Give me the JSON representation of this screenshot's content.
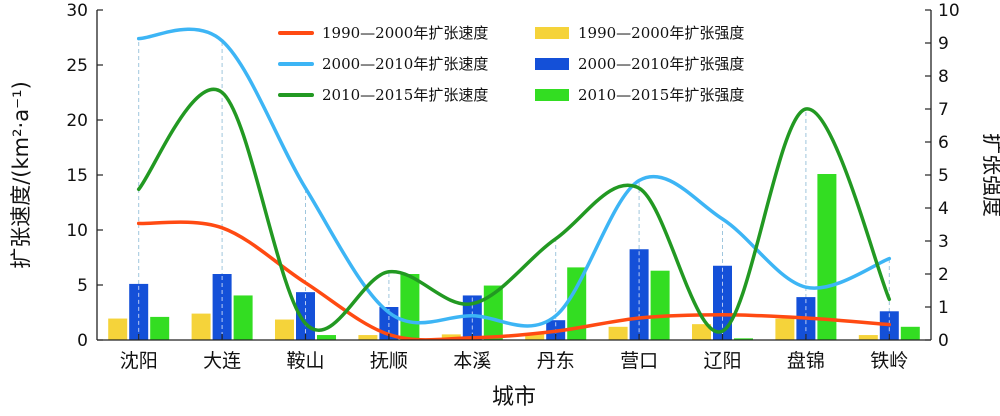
{
  "chart_data": {
    "type": "bar+line",
    "categories": [
      "沈阳",
      "大连",
      "鞍山",
      "抚顺",
      "本溪",
      "丹东",
      "营口",
      "辽阳",
      "盘锦",
      "铁岭"
    ],
    "xlabel": "城市",
    "ylabel_left": "扩张速度/(km²·a⁻¹)",
    "ylabel_right": "扩张强度",
    "ylim_left": [
      0,
      30
    ],
    "ylim_right": [
      0,
      10
    ],
    "yticks_left": [
      0,
      5,
      10,
      15,
      20,
      25,
      30
    ],
    "yticks_right": [
      0,
      1,
      2,
      3,
      4,
      5,
      6,
      7,
      8,
      9,
      10
    ],
    "grid": false,
    "legend_position": "top-center",
    "bar_series": [
      {
        "name": "1990—2000年扩张强度",
        "color": "#f5d33a",
        "values": [
          0.65,
          0.8,
          0.62,
          0.15,
          0.17,
          0.2,
          0.4,
          0.48,
          0.65,
          0.15
        ]
      },
      {
        "name": "2000—2010年扩张强度",
        "color": "#1450d8",
        "values": [
          1.7,
          2.0,
          1.45,
          1.0,
          1.35,
          0.6,
          2.75,
          2.25,
          1.3,
          0.87
        ]
      },
      {
        "name": "2010—2015年扩张强度",
        "color": "#33dd22",
        "values": [
          0.7,
          1.35,
          0.15,
          2.0,
          1.65,
          2.2,
          2.1,
          0.05,
          5.03,
          0.4
        ]
      }
    ],
    "line_series": [
      {
        "name": "1990—2000年扩张速度",
        "color": "#ff4a12",
        "values": [
          10.6,
          10.2,
          5.2,
          0.5,
          0.2,
          0.8,
          2.0,
          2.3,
          2.0,
          1.4
        ]
      },
      {
        "name": "2000—2010年扩张速度",
        "color": "#3db5f5",
        "values": [
          27.4,
          27.2,
          13.8,
          2.5,
          2.2,
          2.2,
          14.5,
          11.0,
          4.8,
          7.4
        ]
      },
      {
        "name": "2010—2015年扩张速度",
        "color": "#229922",
        "values": [
          13.7,
          22.5,
          1.5,
          6.2,
          3.3,
          9.2,
          13.8,
          0.8,
          21.0,
          3.7
        ]
      }
    ]
  }
}
